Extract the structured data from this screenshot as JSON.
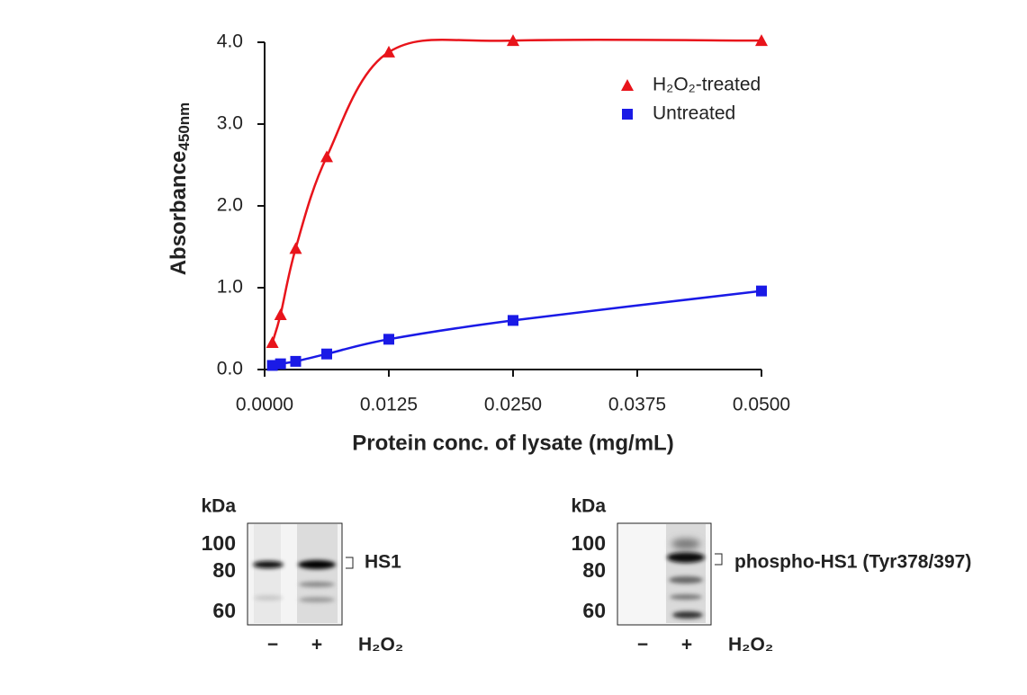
{
  "chart_data": {
    "type": "line",
    "y_label": {
      "text": "Absorbance",
      "subscript": "450nm"
    },
    "x_label": "Protein conc. of lysate (mg/mL)",
    "x": [
      0.00078,
      0.0016,
      0.003125,
      0.00625,
      0.0125,
      0.025,
      0.05
    ],
    "series": [
      {
        "name": "H₂O₂-treated",
        "color": "#e8141b",
        "marker": "triangle",
        "values": [
          0.33,
          0.67,
          1.48,
          2.6,
          3.88,
          4.02,
          4.02
        ]
      },
      {
        "name": "Untreated",
        "color": "#1a1ae6",
        "marker": "square",
        "values": [
          0.05,
          0.07,
          0.1,
          0.19,
          0.37,
          0.6,
          0.96
        ]
      }
    ],
    "xlim": [
      0,
      0.05
    ],
    "ylim": [
      0,
      4
    ],
    "xticks": [
      {
        "value": 0,
        "label": "0.0000"
      },
      {
        "value": 0.0125,
        "label": "0.0125"
      },
      {
        "value": 0.025,
        "label": "0.0250"
      },
      {
        "value": 0.0375,
        "label": "0.0375"
      },
      {
        "value": 0.05,
        "label": "0.0500"
      }
    ],
    "yticks": [
      {
        "value": 0,
        "label": "0.0"
      },
      {
        "value": 1,
        "label": "1.0"
      },
      {
        "value": 2,
        "label": "2.0"
      },
      {
        "value": 3,
        "label": "3.0"
      },
      {
        "value": 4,
        "label": "4.0"
      }
    ],
    "grid": false,
    "legend": "upper right"
  },
  "blots": [
    {
      "unit": "kDa",
      "markers": [
        "100",
        "80",
        "60"
      ],
      "target": "HS1",
      "lanes": [
        "−",
        "+"
      ],
      "treatment": "H₂O₂"
    },
    {
      "unit": "kDa",
      "markers": [
        "100",
        "80",
        "60"
      ],
      "target": "phospho-HS1 (Tyr378/397)",
      "lanes": [
        "−",
        "+"
      ],
      "treatment": "H₂O₂"
    }
  ]
}
